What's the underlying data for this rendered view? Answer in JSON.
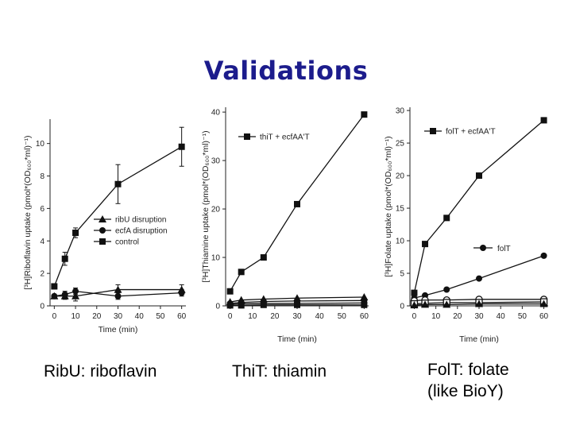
{
  "title": "Validations",
  "captions": [
    "RibU: riboflavin",
    "ThiT: thiamin",
    "FolT: folate",
    "(like BioY)"
  ],
  "chart_data": [
    {
      "type": "line",
      "xlabel": "Time (min)",
      "ylabel": "[³H]Riboflavin uptake (pmol*(OD₆₀₀*ml)⁻¹)",
      "xticks": [
        0,
        10,
        20,
        30,
        40,
        50,
        60
      ],
      "xtick_labels": [
        "0",
        "10",
        "20",
        "30",
        "40",
        "50",
        "60"
      ],
      "yticks": [
        0,
        2,
        4,
        6,
        8,
        10
      ],
      "ytick_labels": [
        "0",
        "2",
        "4",
        "6",
        "8",
        "10"
      ],
      "xlim": [
        -2,
        62
      ],
      "ylim": [
        0,
        11.5
      ],
      "legend_position": "center-right",
      "series": [
        {
          "name": "ribU disruption",
          "marker": "triangle",
          "x": [
            0,
            5,
            10,
            30,
            60
          ],
          "y": [
            0.6,
            0.6,
            0.6,
            1.0,
            1.0
          ],
          "err": [
            0,
            0.2,
            0.3,
            0.3,
            0.3
          ]
        },
        {
          "name": "ecfA disruption",
          "marker": "circle",
          "x": [
            0,
            5,
            10,
            30,
            60
          ],
          "y": [
            0.6,
            0.7,
            0.9,
            0.6,
            0.8
          ],
          "err": [
            0,
            0.2,
            0.2,
            0.2,
            0.2
          ]
        },
        {
          "name": "control",
          "marker": "square",
          "x": [
            0,
            5,
            10,
            30,
            60
          ],
          "y": [
            1.2,
            2.9,
            4.5,
            7.5,
            9.8
          ],
          "err": [
            0,
            0.4,
            0.3,
            1.2,
            1.2
          ]
        }
      ]
    },
    {
      "type": "line",
      "xlabel": "Time (min)",
      "ylabel": "[³H]Thiamine uptake (pmol*(OD₆₀₀*ml)⁻¹)",
      "xticks": [
        0,
        10,
        20,
        30,
        40,
        50,
        60
      ],
      "xtick_labels": [
        "0",
        "10",
        "20",
        "30",
        "40",
        "50",
        "60"
      ],
      "yticks": [
        0,
        10,
        20,
        30,
        40
      ],
      "ytick_labels": [
        "0",
        "10",
        "20",
        "30",
        "40"
      ],
      "xlim": [
        -2,
        62
      ],
      "ylim": [
        0,
        41
      ],
      "legend_position": "top-left",
      "series": [
        {
          "name": "thiT + ecfAA'T",
          "marker": "square",
          "x": [
            0,
            5,
            15,
            30,
            60
          ],
          "y": [
            3,
            7,
            10,
            21,
            39.5
          ]
        },
        {
          "name": "",
          "marker": "triangle",
          "x": [
            0,
            5,
            15,
            30,
            60
          ],
          "y": [
            0.8,
            1.2,
            1.4,
            1.6,
            1.8
          ]
        },
        {
          "name": "",
          "marker": "circle",
          "x": [
            0,
            5,
            15,
            30,
            60
          ],
          "y": [
            0.5,
            0.7,
            0.9,
            1.0,
            1.1
          ]
        },
        {
          "name": "",
          "marker": "circle",
          "x": [
            0,
            5,
            15,
            30,
            60
          ],
          "y": [
            0.3,
            0.4,
            0.5,
            0.5,
            0.6
          ]
        },
        {
          "name": "",
          "marker": "square",
          "x": [
            0,
            5,
            15,
            30,
            60
          ],
          "y": [
            0.1,
            0.1,
            0.2,
            0.2,
            0.2
          ]
        }
      ]
    },
    {
      "type": "line",
      "xlabel": "Time (min)",
      "ylabel": "[³H]Folate uptake (pmol*(OD₆₀₀*ml)⁻¹)",
      "xticks": [
        0,
        10,
        20,
        30,
        40,
        50,
        60
      ],
      "xtick_labels": [
        "0",
        "10",
        "20",
        "30",
        "40",
        "50",
        "60"
      ],
      "yticks": [
        0,
        5,
        10,
        15,
        20,
        25,
        30
      ],
      "ytick_labels": [
        "0",
        "5",
        "10",
        "15",
        "20",
        "25",
        "30"
      ],
      "xlim": [
        -2,
        62
      ],
      "ylim": [
        0,
        30.5
      ],
      "legend_position": "top-left",
      "series": [
        {
          "name": "folT + ecfAA'T",
          "marker": "square",
          "x": [
            0,
            5,
            15,
            30,
            60
          ],
          "y": [
            2,
            9.5,
            13.5,
            20,
            28.5
          ]
        },
        {
          "name": "folT",
          "marker": "circle",
          "x": [
            0,
            5,
            15,
            30,
            60
          ],
          "y": [
            1.2,
            1.6,
            2.5,
            4.2,
            7.7
          ]
        },
        {
          "name": "",
          "marker": "open-circle",
          "x": [
            0,
            5,
            15,
            30,
            60
          ],
          "y": [
            0.8,
            0.9,
            0.9,
            1.0,
            1.0
          ]
        },
        {
          "name": "",
          "marker": "open-square",
          "x": [
            0,
            5,
            15,
            30,
            60
          ],
          "y": [
            0.3,
            0.4,
            0.5,
            0.5,
            0.6
          ]
        },
        {
          "name": "",
          "marker": "triangle",
          "x": [
            0,
            5,
            15,
            30,
            60
          ],
          "y": [
            0.1,
            0.2,
            0.2,
            0.3,
            0.3
          ]
        }
      ]
    }
  ]
}
